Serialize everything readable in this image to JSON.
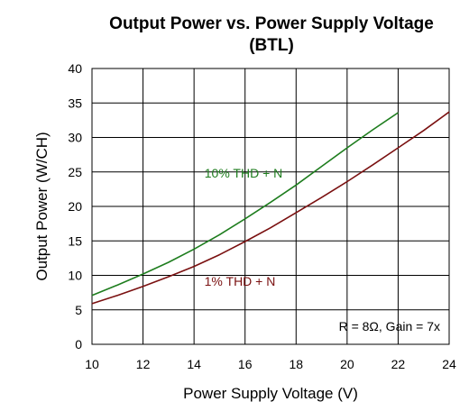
{
  "chart_data": {
    "type": "line",
    "title": "Output Power vs. Power Supply Voltage",
    "subtitle": "(BTL)",
    "xlabel": "Power Supply Voltage (V)",
    "ylabel": "Output Power (W/CH)",
    "xlim": [
      10,
      24
    ],
    "ylim": [
      0,
      40
    ],
    "x_ticks": [
      10,
      12,
      14,
      16,
      18,
      20,
      22,
      24
    ],
    "y_ticks": [
      0,
      5,
      10,
      15,
      20,
      25,
      30,
      35,
      40
    ],
    "grid": true,
    "series": [
      {
        "name": "10% THD + N",
        "color": "#1e7d1e",
        "x": [
          10,
          11,
          12,
          13,
          14,
          15,
          16,
          17,
          18,
          19,
          20,
          21,
          22
        ],
        "y": [
          7.1,
          8.6,
          10.2,
          11.9,
          13.8,
          15.9,
          18.2,
          20.6,
          23.1,
          25.8,
          28.5,
          31.1,
          33.6
        ]
      },
      {
        "name": "1% THD + N",
        "color": "#7a1010",
        "x": [
          10,
          11,
          12,
          13,
          14,
          15,
          16,
          17,
          18,
          19,
          20,
          21,
          22,
          23,
          24
        ],
        "y": [
          5.9,
          7.1,
          8.4,
          9.8,
          11.3,
          13.0,
          14.9,
          16.9,
          19.1,
          21.3,
          23.6,
          26.0,
          28.5,
          31.0,
          33.7
        ]
      }
    ],
    "annotation": "R = 8Ω, Gain = 7x"
  }
}
